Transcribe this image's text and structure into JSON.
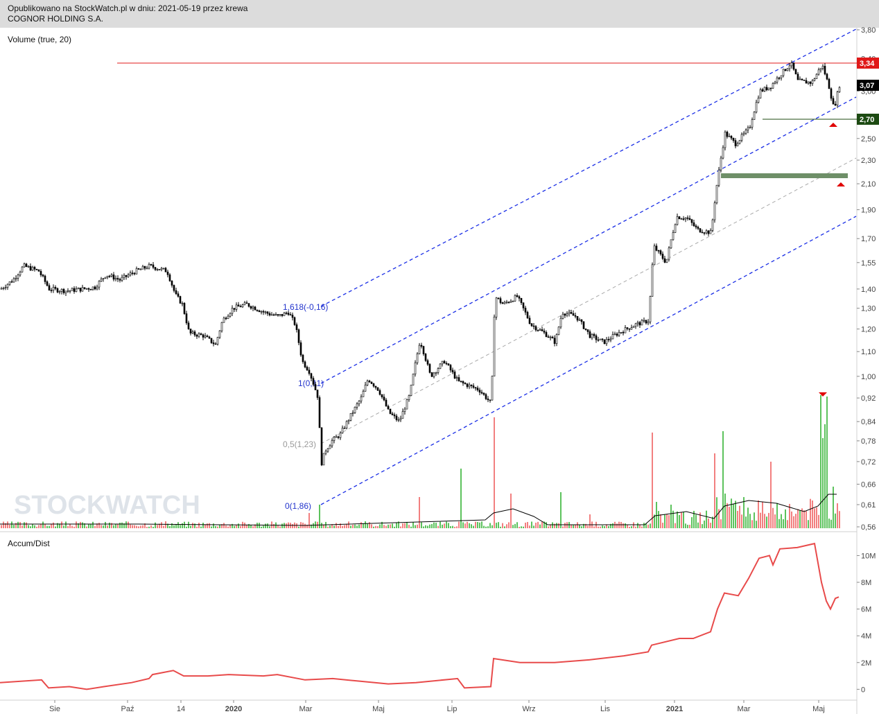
{
  "header": {
    "published": "Opublikowano na StockWatch.pl w dniu: 2021-05-19 przez krewa",
    "company": "COGNOR HOLDING S.A."
  },
  "watermark": "STOCKWATCH",
  "colors": {
    "candle": "#000000",
    "channel": "#1a2ee6",
    "midline": "#aaaaaa",
    "resistance": "#e01818",
    "support": "#1c4a12",
    "zone": "#6e8f68",
    "vol_up": "#5cc25c",
    "vol_down": "#f27f7f",
    "accum": "#e84a4a",
    "marker": "#e00000"
  },
  "chart_data": [
    {
      "type": "candlestick",
      "name": "price",
      "x_labels": [
        "Sie",
        "Paź",
        "14",
        "2020",
        "Mar",
        "Maj",
        "Lip",
        "Wrz",
        "Lis",
        "2021",
        "Mar",
        "Maj"
      ],
      "y_ticks": [
        "3,80",
        "3,40",
        "3,00",
        "2,50",
        "2,30",
        "2,10",
        "1,90",
        "1,70",
        "1,55",
        "1,40",
        "1,30",
        "1,20",
        "1,10",
        "1,00",
        "0,92",
        "0,84",
        "0,78",
        "0,72",
        "0,66",
        "0,61",
        "0,56"
      ],
      "scale": "log",
      "ylim": [
        0.56,
        3.8
      ],
      "close_path": [
        {
          "x": 0,
          "y": 1.4
        },
        {
          "x": 18,
          "y": 1.45
        },
        {
          "x": 33,
          "y": 1.53
        },
        {
          "x": 55,
          "y": 1.5
        },
        {
          "x": 70,
          "y": 1.4
        },
        {
          "x": 95,
          "y": 1.39
        },
        {
          "x": 118,
          "y": 1.4
        },
        {
          "x": 136,
          "y": 1.41
        },
        {
          "x": 152,
          "y": 1.48
        },
        {
          "x": 172,
          "y": 1.45
        },
        {
          "x": 195,
          "y": 1.5
        },
        {
          "x": 215,
          "y": 1.53
        },
        {
          "x": 240,
          "y": 1.5
        },
        {
          "x": 252,
          "y": 1.37
        },
        {
          "x": 262,
          "y": 1.32
        },
        {
          "x": 272,
          "y": 1.18
        },
        {
          "x": 292,
          "y": 1.17
        },
        {
          "x": 310,
          "y": 1.13
        },
        {
          "x": 320,
          "y": 1.24
        },
        {
          "x": 335,
          "y": 1.3
        },
        {
          "x": 355,
          "y": 1.32
        },
        {
          "x": 380,
          "y": 1.28
        },
        {
          "x": 400,
          "y": 1.26
        },
        {
          "x": 415,
          "y": 1.28
        },
        {
          "x": 425,
          "y": 1.22
        },
        {
          "x": 435,
          "y": 1.06
        },
        {
          "x": 445,
          "y": 1.02
        },
        {
          "x": 458,
          "y": 0.92
        },
        {
          "x": 462,
          "y": 0.71
        },
        {
          "x": 468,
          "y": 0.75
        },
        {
          "x": 478,
          "y": 0.78
        },
        {
          "x": 490,
          "y": 0.8
        },
        {
          "x": 505,
          "y": 0.86
        },
        {
          "x": 520,
          "y": 0.92
        },
        {
          "x": 530,
          "y": 0.99
        },
        {
          "x": 545,
          "y": 0.95
        },
        {
          "x": 560,
          "y": 0.87
        },
        {
          "x": 575,
          "y": 0.84
        },
        {
          "x": 590,
          "y": 0.93
        },
        {
          "x": 605,
          "y": 1.15
        },
        {
          "x": 620,
          "y": 1.0
        },
        {
          "x": 640,
          "y": 1.06
        },
        {
          "x": 660,
          "y": 0.98
        },
        {
          "x": 690,
          "y": 0.95
        },
        {
          "x": 708,
          "y": 0.9
        },
        {
          "x": 713,
          "y": 1.36
        },
        {
          "x": 725,
          "y": 1.32
        },
        {
          "x": 745,
          "y": 1.36
        },
        {
          "x": 765,
          "y": 1.22
        },
        {
          "x": 785,
          "y": 1.18
        },
        {
          "x": 800,
          "y": 1.14
        },
        {
          "x": 810,
          "y": 1.28
        },
        {
          "x": 830,
          "y": 1.26
        },
        {
          "x": 850,
          "y": 1.17
        },
        {
          "x": 870,
          "y": 1.14
        },
        {
          "x": 890,
          "y": 1.18
        },
        {
          "x": 915,
          "y": 1.22
        },
        {
          "x": 935,
          "y": 1.24
        },
        {
          "x": 942,
          "y": 1.65
        },
        {
          "x": 960,
          "y": 1.55
        },
        {
          "x": 975,
          "y": 1.85
        },
        {
          "x": 990,
          "y": 1.84
        },
        {
          "x": 1005,
          "y": 1.76
        },
        {
          "x": 1025,
          "y": 1.74
        },
        {
          "x": 1032,
          "y": 2.05
        },
        {
          "x": 1045,
          "y": 2.55
        },
        {
          "x": 1060,
          "y": 2.45
        },
        {
          "x": 1080,
          "y": 2.6
        },
        {
          "x": 1095,
          "y": 3.0
        },
        {
          "x": 1110,
          "y": 3.05
        },
        {
          "x": 1125,
          "y": 3.2
        },
        {
          "x": 1140,
          "y": 3.34
        },
        {
          "x": 1150,
          "y": 3.12
        },
        {
          "x": 1170,
          "y": 3.1
        },
        {
          "x": 1185,
          "y": 3.32
        },
        {
          "x": 1195,
          "y": 3.05
        },
        {
          "x": 1202,
          "y": 2.8
        },
        {
          "x": 1210,
          "y": 3.07
        }
      ],
      "levels": {
        "resistance": "3,34",
        "last": "3,07",
        "support": "2,70"
      },
      "zone_label": "",
      "fib_labels": [
        "1,618(-0,16)",
        "1(0,11)",
        "0,5(1,23)",
        "0(1,86)"
      ]
    },
    {
      "type": "bar",
      "name": "Volume (true, 20)",
      "label": "Volume (true, 20)"
    },
    {
      "type": "line",
      "name": "Accum/Dist",
      "label": "Accum/Dist",
      "y_ticks": [
        "10M",
        "8M",
        "6M",
        "4M",
        "2M",
        "0"
      ],
      "ylim": [
        -0.5,
        10.8
      ],
      "values": [
        {
          "x": 0,
          "y": 0.5
        },
        {
          "x": 60,
          "y": 0.7
        },
        {
          "x": 70,
          "y": 0.1
        },
        {
          "x": 100,
          "y": 0.2
        },
        {
          "x": 125,
          "y": 0.0
        },
        {
          "x": 150,
          "y": 0.2
        },
        {
          "x": 190,
          "y": 0.5
        },
        {
          "x": 215,
          "y": 0.8
        },
        {
          "x": 220,
          "y": 1.1
        },
        {
          "x": 250,
          "y": 1.4
        },
        {
          "x": 265,
          "y": 1.0
        },
        {
          "x": 300,
          "y": 1.0
        },
        {
          "x": 330,
          "y": 1.1
        },
        {
          "x": 380,
          "y": 1.0
        },
        {
          "x": 400,
          "y": 1.1
        },
        {
          "x": 440,
          "y": 0.7
        },
        {
          "x": 480,
          "y": 0.8
        },
        {
          "x": 520,
          "y": 0.6
        },
        {
          "x": 560,
          "y": 0.4
        },
        {
          "x": 600,
          "y": 0.5
        },
        {
          "x": 660,
          "y": 0.8
        },
        {
          "x": 670,
          "y": 0.1
        },
        {
          "x": 708,
          "y": 0.2
        },
        {
          "x": 712,
          "y": 2.3
        },
        {
          "x": 750,
          "y": 2.0
        },
        {
          "x": 800,
          "y": 2.0
        },
        {
          "x": 850,
          "y": 2.2
        },
        {
          "x": 900,
          "y": 2.5
        },
        {
          "x": 935,
          "y": 2.8
        },
        {
          "x": 940,
          "y": 3.3
        },
        {
          "x": 980,
          "y": 3.8
        },
        {
          "x": 1000,
          "y": 3.8
        },
        {
          "x": 1025,
          "y": 4.3
        },
        {
          "x": 1035,
          "y": 6.0
        },
        {
          "x": 1045,
          "y": 7.2
        },
        {
          "x": 1065,
          "y": 7.0
        },
        {
          "x": 1080,
          "y": 8.3
        },
        {
          "x": 1095,
          "y": 9.8
        },
        {
          "x": 1110,
          "y": 10.0
        },
        {
          "x": 1115,
          "y": 9.3
        },
        {
          "x": 1125,
          "y": 10.5
        },
        {
          "x": 1150,
          "y": 10.6
        },
        {
          "x": 1175,
          "y": 10.9
        },
        {
          "x": 1185,
          "y": 8.0
        },
        {
          "x": 1192,
          "y": 6.6
        },
        {
          "x": 1198,
          "y": 6.0
        },
        {
          "x": 1205,
          "y": 6.8
        },
        {
          "x": 1210,
          "y": 6.9
        }
      ]
    }
  ]
}
